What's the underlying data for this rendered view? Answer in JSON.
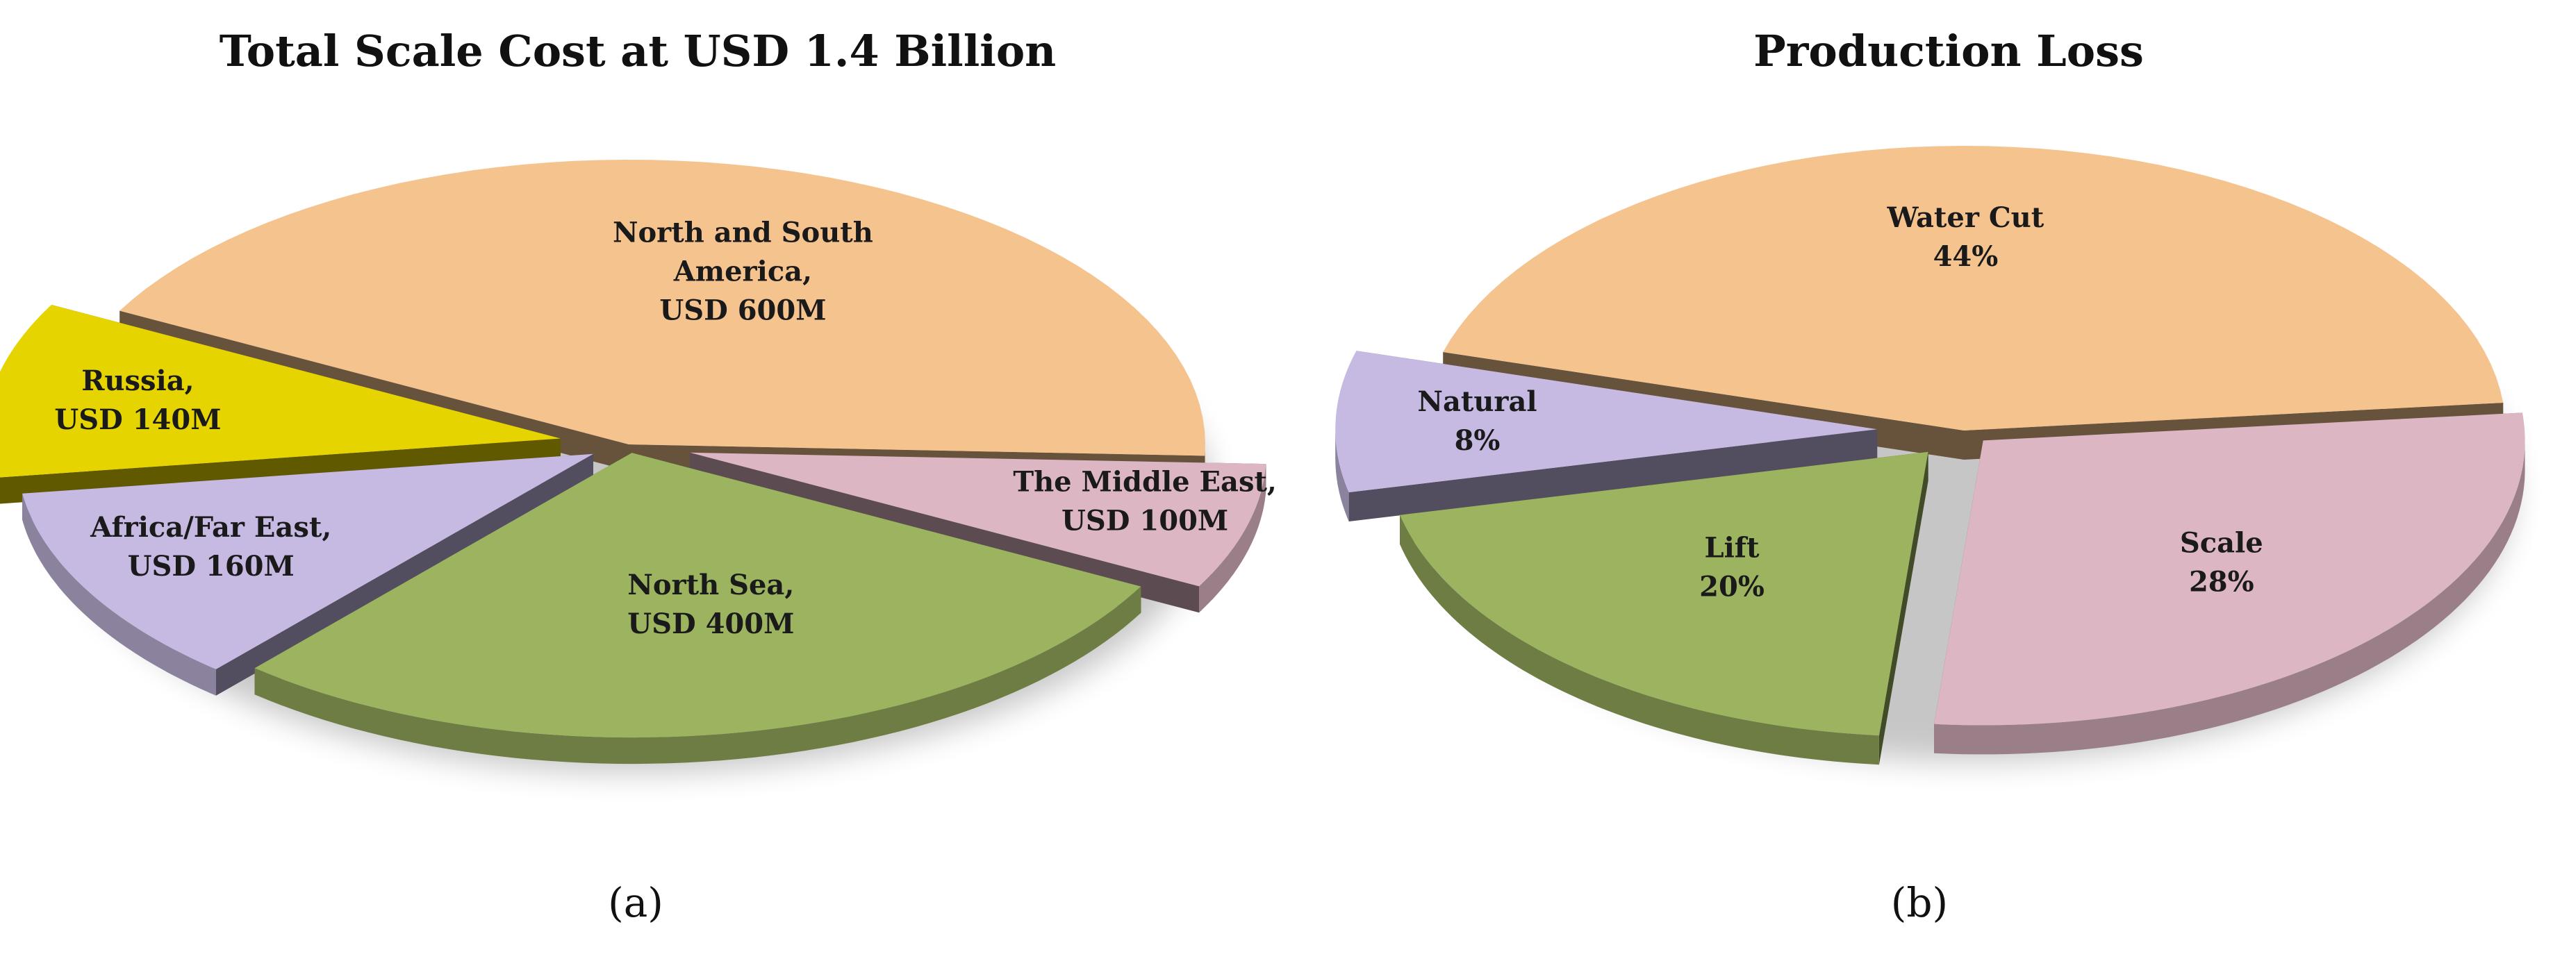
{
  "chart_data": [
    {
      "type": "pie",
      "title": "Total Scale Cost at USD 1.4 Billion",
      "caption": "(a)",
      "slices": [
        {
          "label_lines": [
            "North and South",
            "America,",
            "USD 600M"
          ],
          "value": 600,
          "color": "#f5c38e",
          "explode": 0
        },
        {
          "label_lines": [
            "The Middle East,",
            "USD 100M"
          ],
          "value": 100,
          "color": "#dcb6c3",
          "explode": 0.11
        },
        {
          "label_lines": [
            "North Sea,",
            "USD 400M"
          ],
          "value": 400,
          "color": "#9cb360",
          "explode": 0.03
        },
        {
          "label_lines": [
            "Africa/Far East,",
            "USD 160M"
          ],
          "value": 160,
          "color": "#c6b9e2",
          "explode": 0.07
        },
        {
          "label_lines": [
            "Russia,",
            "USD 140M"
          ],
          "value": 140,
          "color": "#e6d400",
          "explode": 0.12
        }
      ]
    },
    {
      "type": "pie",
      "title": "Production Loss",
      "caption": "(b)",
      "slices": [
        {
          "label_lines": [
            "Water Cut",
            "44%"
          ],
          "value": 44,
          "color": "#f5c38e",
          "explode": 0
        },
        {
          "label_lines": [
            "Scale",
            "28%"
          ],
          "value": 28,
          "color": "#dcb6c3",
          "explode": 0.05
        },
        {
          "label_lines": [
            "Lift",
            "20%"
          ],
          "value": 20,
          "color": "#9cb360",
          "explode": 0.1
        },
        {
          "label_lines": [
            "Natural",
            "8%"
          ],
          "value": 8,
          "color": "#c6b9e2",
          "explode": 0.16
        }
      ]
    }
  ]
}
